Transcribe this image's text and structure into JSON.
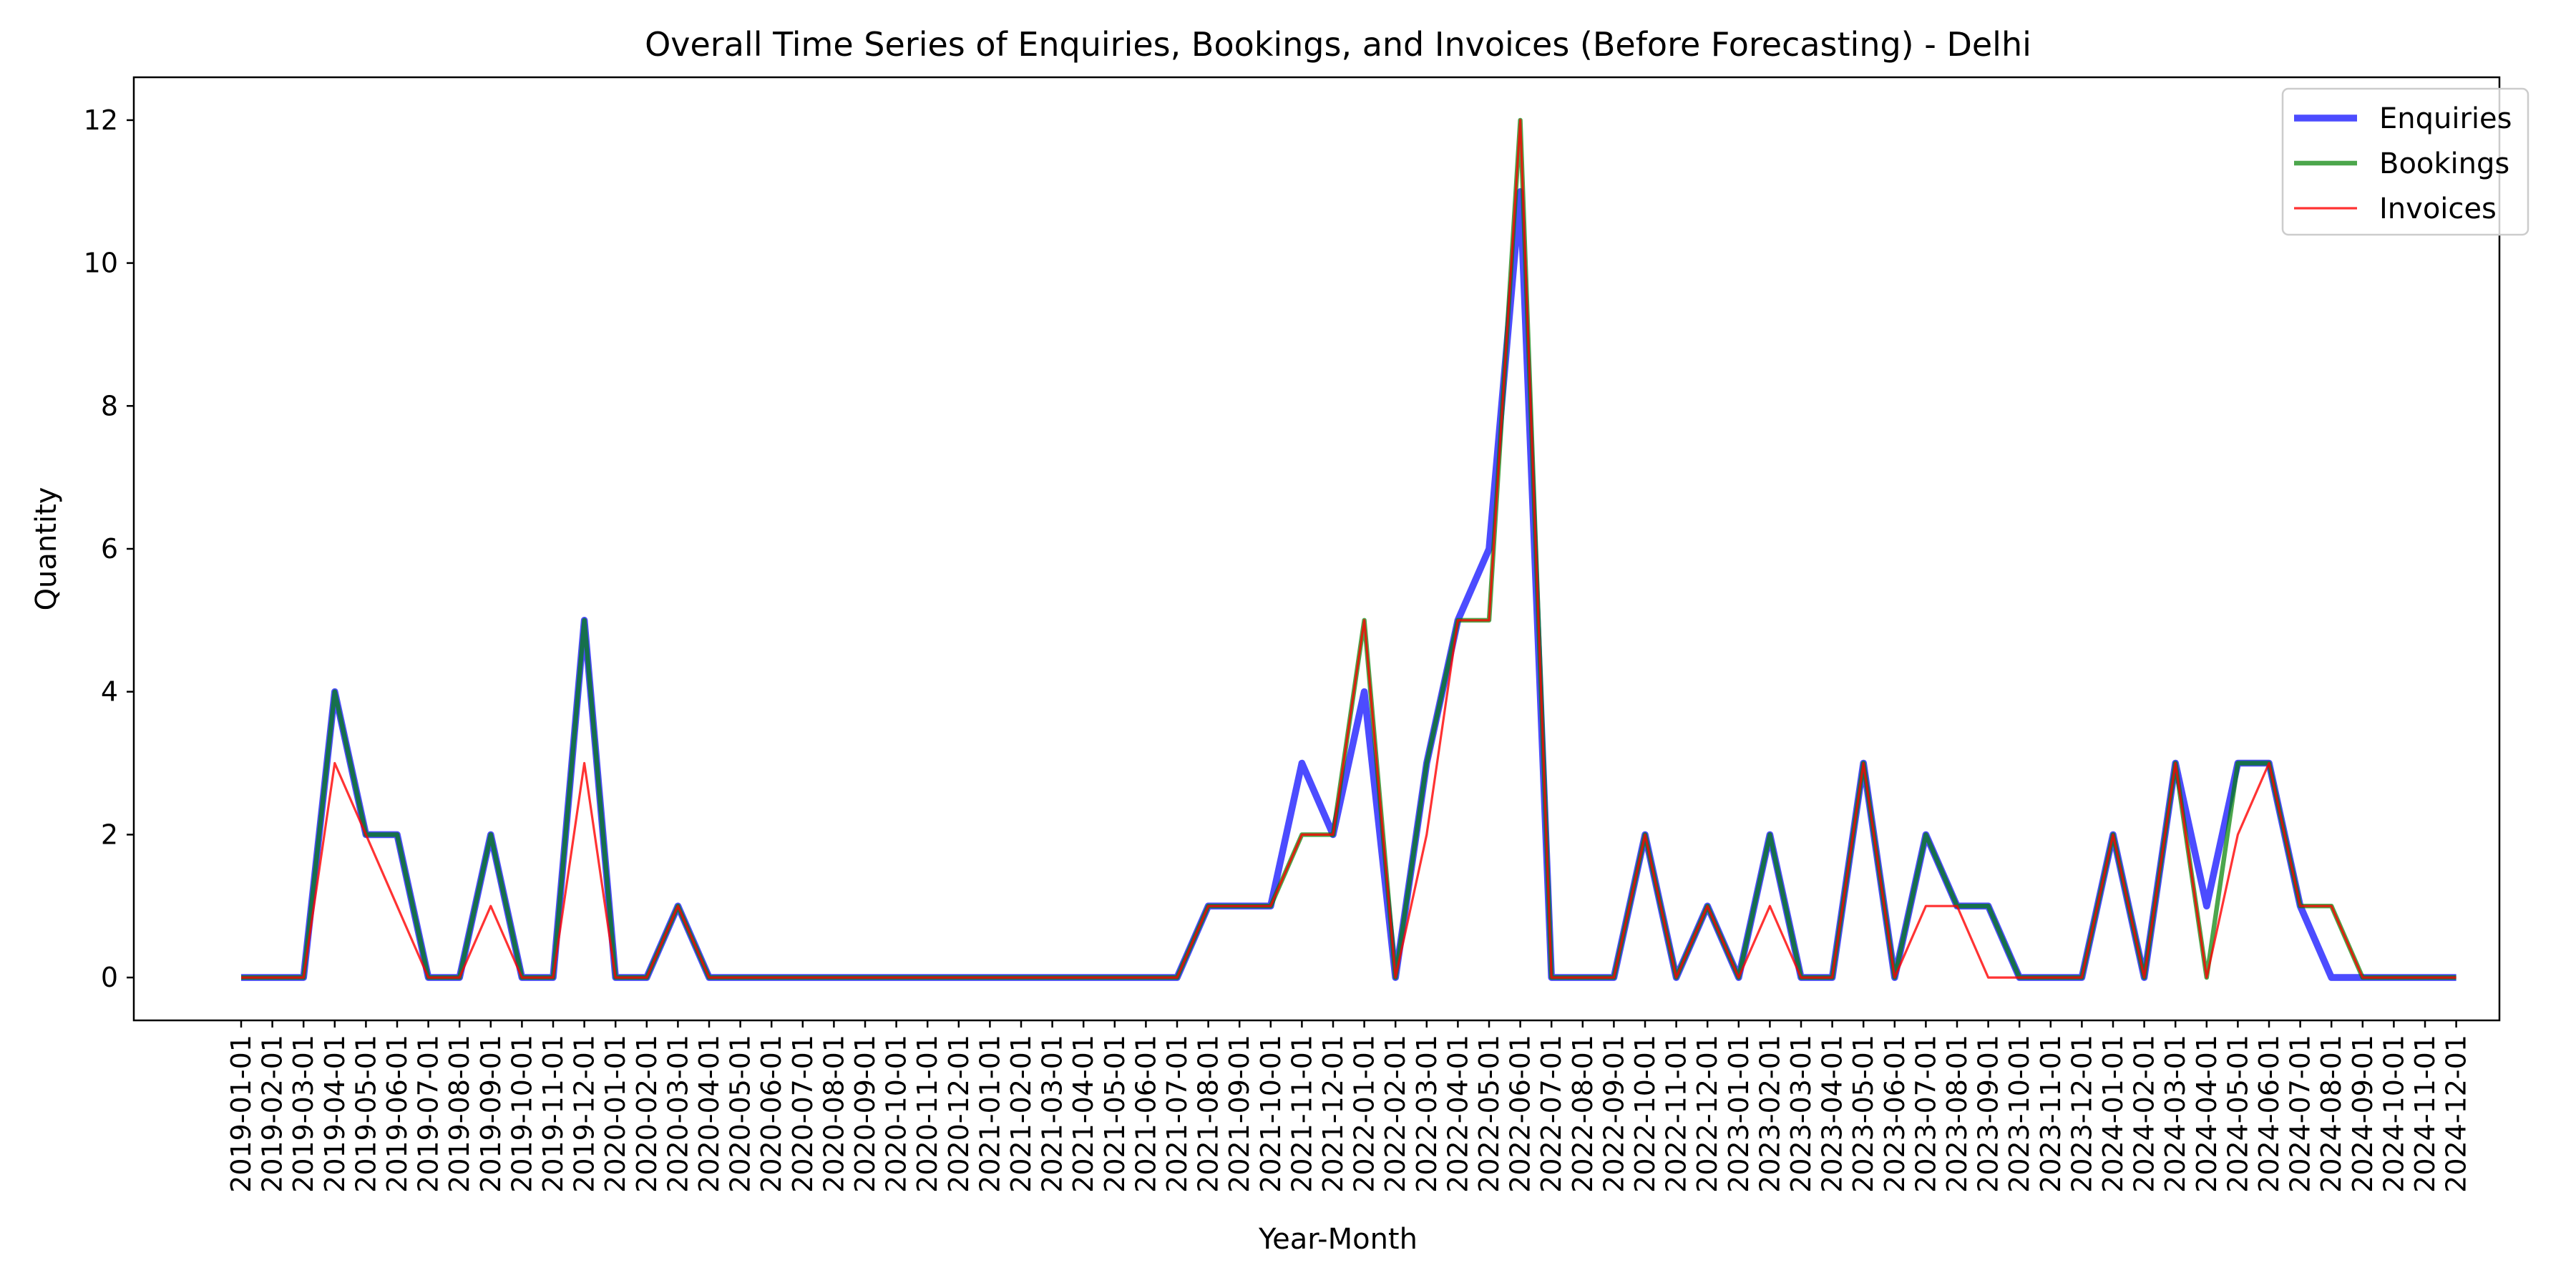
{
  "chart_data": {
    "type": "line",
    "title": "Overall Time Series of Enquiries, Bookings, and Invoices (Before Forecasting) - Delhi",
    "xlabel": "Year-Month",
    "ylabel": "Quantity",
    "ylim": [
      -0.6,
      12.6
    ],
    "yticks": [
      0,
      2,
      4,
      6,
      8,
      10,
      12
    ],
    "grid": false,
    "legend_position": "top-right",
    "categories": [
      "2019-01-01",
      "2019-02-01",
      "2019-03-01",
      "2019-04-01",
      "2019-05-01",
      "2019-06-01",
      "2019-07-01",
      "2019-08-01",
      "2019-09-01",
      "2019-10-01",
      "2019-11-01",
      "2019-12-01",
      "2020-01-01",
      "2020-02-01",
      "2020-03-01",
      "2020-04-01",
      "2020-05-01",
      "2020-06-01",
      "2020-07-01",
      "2020-08-01",
      "2020-09-01",
      "2020-10-01",
      "2020-11-01",
      "2020-12-01",
      "2021-01-01",
      "2021-02-01",
      "2021-03-01",
      "2021-04-01",
      "2021-05-01",
      "2021-06-01",
      "2021-07-01",
      "2021-08-01",
      "2021-09-01",
      "2021-10-01",
      "2021-11-01",
      "2021-12-01",
      "2022-01-01",
      "2022-02-01",
      "2022-03-01",
      "2022-04-01",
      "2022-05-01",
      "2022-06-01",
      "2022-07-01",
      "2022-08-01",
      "2022-09-01",
      "2022-10-01",
      "2022-11-01",
      "2022-12-01",
      "2023-01-01",
      "2023-02-01",
      "2023-03-01",
      "2023-04-01",
      "2023-05-01",
      "2023-06-01",
      "2023-07-01",
      "2023-08-01",
      "2023-09-01",
      "2023-10-01",
      "2023-11-01",
      "2023-12-01",
      "2024-01-01",
      "2024-02-01",
      "2024-03-01",
      "2024-04-01",
      "2024-05-01",
      "2024-06-01",
      "2024-07-01",
      "2024-08-01",
      "2024-09-01",
      "2024-10-01",
      "2024-11-01",
      "2024-12-01"
    ],
    "series": [
      {
        "name": "Enquiries",
        "color": "#0000ff",
        "opacity": 0.7,
        "linewidth": 3,
        "values": [
          0,
          0,
          0,
          4,
          2,
          2,
          0,
          0,
          2,
          0,
          0,
          5,
          0,
          0,
          1,
          0,
          0,
          0,
          0,
          0,
          0,
          0,
          0,
          0,
          0,
          0,
          0,
          0,
          0,
          0,
          0,
          1,
          1,
          1,
          3,
          2,
          4,
          0,
          3,
          5,
          6,
          11,
          0,
          0,
          0,
          2,
          0,
          1,
          0,
          2,
          0,
          0,
          3,
          0,
          2,
          1,
          1,
          0,
          0,
          0,
          2,
          0,
          3,
          1,
          3,
          3,
          1,
          0,
          0,
          0,
          0,
          0
        ]
      },
      {
        "name": "Bookings",
        "color": "#008000",
        "opacity": 0.7,
        "linewidth": 2,
        "values": [
          0,
          0,
          0,
          4,
          2,
          2,
          0,
          0,
          2,
          0,
          0,
          5,
          0,
          0,
          1,
          0,
          0,
          0,
          0,
          0,
          0,
          0,
          0,
          0,
          0,
          0,
          0,
          0,
          0,
          0,
          0,
          1,
          1,
          1,
          2,
          2,
          5,
          0,
          3,
          5,
          5,
          12,
          0,
          0,
          0,
          2,
          0,
          1,
          0,
          2,
          0,
          0,
          3,
          0,
          2,
          1,
          1,
          0,
          0,
          0,
          2,
          0,
          3,
          0,
          3,
          3,
          1,
          1,
          0,
          0,
          0,
          0
        ]
      },
      {
        "name": "Invoices",
        "color": "#ff0000",
        "opacity": 0.8,
        "linewidth": 1,
        "values": [
          0,
          0,
          0,
          3,
          2,
          1,
          0,
          0,
          1,
          0,
          0,
          3,
          0,
          0,
          1,
          0,
          0,
          0,
          0,
          0,
          0,
          0,
          0,
          0,
          0,
          0,
          0,
          0,
          0,
          0,
          0,
          1,
          1,
          1,
          2,
          2,
          5,
          0,
          2,
          5,
          5,
          12,
          0,
          0,
          0,
          2,
          0,
          1,
          0,
          1,
          0,
          0,
          3,
          0,
          1,
          1,
          0,
          0,
          0,
          0,
          2,
          0,
          3,
          0,
          2,
          3,
          1,
          1,
          0,
          0,
          0,
          0
        ]
      }
    ]
  }
}
